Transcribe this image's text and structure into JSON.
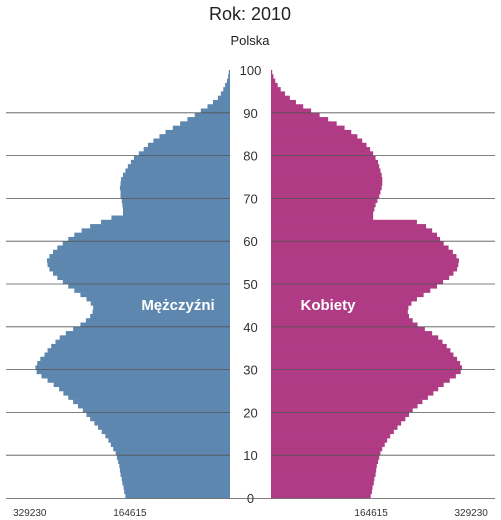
{
  "chart_data": {
    "type": "population-pyramid",
    "title": "Rok: 2010",
    "subtitle": "Polska",
    "ylim": [
      0,
      100
    ],
    "y_ticks": [
      0,
      10,
      20,
      30,
      40,
      50,
      60,
      70,
      80,
      90,
      100
    ],
    "x_max": 370000,
    "x_tick_labels_left": [
      329230,
      164615
    ],
    "x_tick_labels_right": [
      164615,
      329230
    ],
    "grid": true,
    "colors": {
      "male": "#5e87b0",
      "female": "#b03b85"
    },
    "series": [
      {
        "name": "Mężczyźni",
        "side": "left",
        "values": [
          172000,
          174000,
          175000,
          177000,
          178000,
          180000,
          181000,
          182000,
          184000,
          186000,
          188000,
          192000,
          196000,
          200000,
          205000,
          211000,
          217000,
          223000,
          230000,
          236000,
          242000,
          250000,
          258000,
          266000,
          274000,
          281000,
          290000,
          300000,
          310000,
          318000,
          320000,
          317000,
          312000,
          305000,
          300000,
          294000,
          287000,
          280000,
          270000,
          258000,
          246000,
          237000,
          230000,
          226000,
          225000,
          229000,
          236000,
          246000,
          256000,
          266000,
          275000,
          284000,
          291000,
          297000,
          300000,
          301000,
          297000,
          291000,
          284000,
          275000,
          266000,
          256000,
          244000,
          230000,
          212000,
          195000,
          176000,
          176000,
          177000,
          178000,
          180000,
          180000,
          181000,
          180000,
          179000,
          176000,
          172000,
          168000,
          163000,
          158000,
          150000,
          142000,
          135000,
          126000,
          116000,
          106000,
          94000,
          82000,
          70000,
          58000,
          48000,
          37000,
          28000,
          20000,
          15000,
          11000,
          8000,
          5000,
          3000,
          2000
        ]
      },
      {
        "name": "Kobiety",
        "side": "right",
        "values": [
          164000,
          166000,
          167000,
          169000,
          170000,
          172000,
          173000,
          174000,
          176000,
          178000,
          180000,
          183000,
          187000,
          191000,
          196000,
          202000,
          208000,
          214000,
          221000,
          227000,
          233000,
          241000,
          249000,
          258000,
          267000,
          275000,
          284000,
          294000,
          304000,
          312000,
          314000,
          311000,
          306000,
          300000,
          295000,
          289000,
          282000,
          275000,
          265000,
          253000,
          241000,
          233000,
          227000,
          225000,
          226000,
          231000,
          240000,
          251000,
          262000,
          273000,
          283000,
          293000,
          300000,
          306000,
          308000,
          309000,
          305000,
          299000,
          292000,
          284000,
          278000,
          273000,
          265000,
          255000,
          240000,
          168000,
          168000,
          170000,
          172000,
          175000,
          178000,
          180000,
          182000,
          183000,
          183000,
          182000,
          180000,
          178000,
          176000,
          172000,
          168000,
          163000,
          157000,
          150000,
          142000,
          132000,
          121000,
          108000,
          94000,
          80000,
          66000,
          53000,
          41000,
          31000,
          23000,
          16000,
          11000,
          7000,
          4000,
          2000
        ]
      }
    ]
  }
}
